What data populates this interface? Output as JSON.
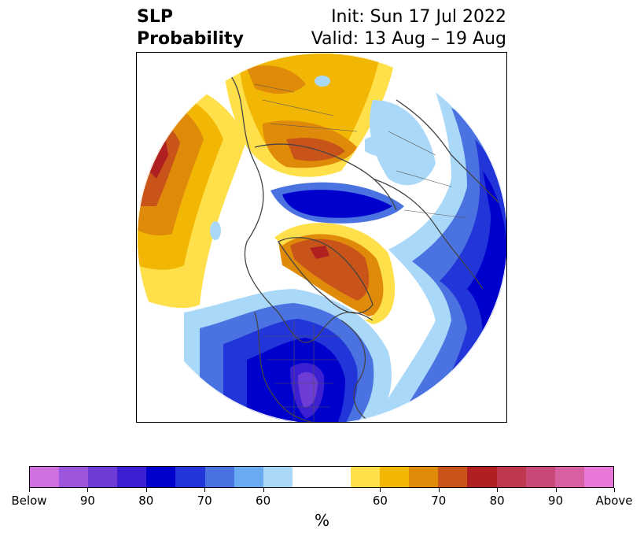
{
  "header": {
    "title_line1": "SLP",
    "title_line2": "Probability",
    "init_text": "Init: Sun 17 Jul 2022",
    "valid_text": "Valid: 13 Aug – 19 Aug"
  },
  "colorbar": {
    "colors": [
      "#d070e0",
      "#9d55dd",
      "#6d3bd6",
      "#3b1fd0",
      "#0000cc",
      "#2235d8",
      "#4a72e0",
      "#6aaaf0",
      "#aad8f8",
      "#ffffff",
      "#ffffff",
      "#ffe04a",
      "#f2b705",
      "#e08a0a",
      "#c8541a",
      "#b02020",
      "#c03850",
      "#c84878",
      "#d860a0",
      "#e878d8"
    ],
    "tick_labels": [
      "Below",
      "90",
      "80",
      "70",
      "60",
      "60",
      "70",
      "80",
      "90",
      "Above"
    ],
    "unit_label": "%"
  },
  "map_colors": {
    "below_60": "#aad8f8",
    "below_70": "#4a72e0",
    "below_80": "#0000cc",
    "below_90": "#6d3bd6",
    "above_60": "#ffe04a",
    "above_70": "#e08a0a",
    "above_80": "#b02020"
  }
}
